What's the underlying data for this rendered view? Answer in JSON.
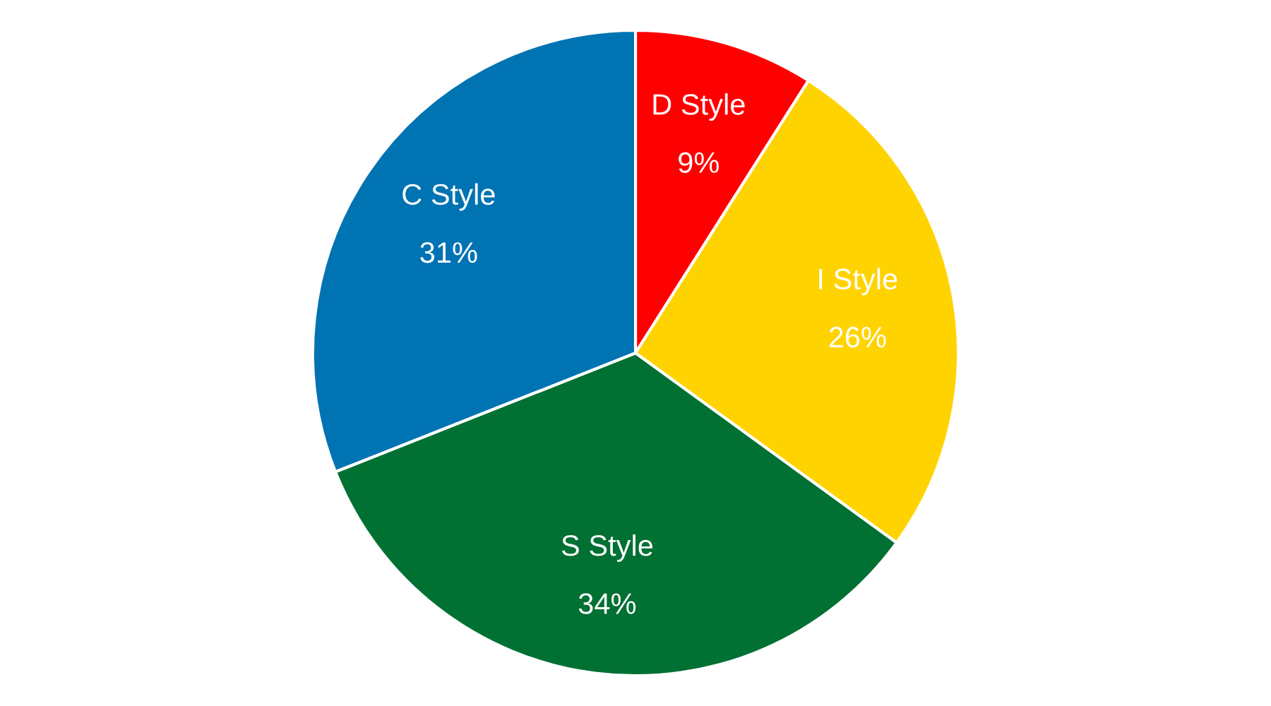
{
  "chart_data": {
    "type": "pie",
    "categories": [
      "D Style",
      "I Style",
      "S Style",
      "C Style"
    ],
    "values": [
      9,
      26,
      34,
      31
    ],
    "value_labels": [
      "9%",
      "26%",
      "34%",
      "31%"
    ],
    "colors": [
      "#ff0000",
      "#ffd300",
      "#007033",
      "#0073b3"
    ]
  }
}
